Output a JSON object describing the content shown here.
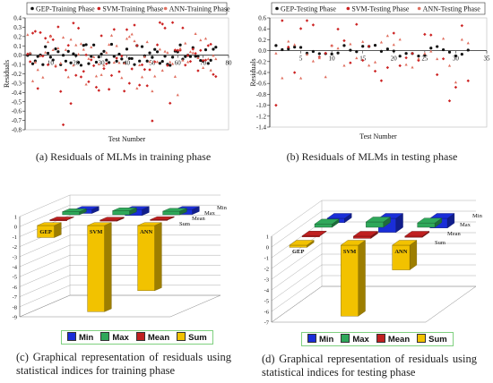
{
  "colors": {
    "gep": "#111111",
    "svm": "#cc2222",
    "ann": "#e07060",
    "min": "#1a2ed8",
    "max": "#2fa85a",
    "mean": "#c02020",
    "sum": "#f2c200"
  },
  "chart_data": [
    {
      "type": "scatter",
      "caption": "(a) Residuals of MLMs in training phase",
      "xlabel": "Test Number",
      "ylabel": "Residuals",
      "xlim": [
        0,
        80
      ],
      "ylim": [
        -0.8,
        0.4
      ],
      "xticks": [
        "10",
        "20",
        "30",
        "40",
        "50",
        "60",
        "70",
        "80"
      ],
      "yticks": [
        "0.4",
        "0.3",
        "0.2",
        "0.1",
        "0.0",
        "-0.1",
        "-0.2",
        "-0.3",
        "-0.4",
        "-0.5",
        "-0.6",
        "-0.7",
        "-0.8"
      ],
      "legend_position": "top",
      "series": [
        {
          "name": "GEP-Training Phase",
          "marker": "circle",
          "n": 75,
          "amp": 0.12
        },
        {
          "name": "SVM-Training Phase",
          "marker": "diamond",
          "n": 75,
          "amp": 0.4
        },
        {
          "name": "ANN-Training Phase",
          "marker": "triangle",
          "n": 75,
          "amp": 0.25
        }
      ]
    },
    {
      "type": "scatter",
      "caption": "(b) Residuals of MLMs in testing phase",
      "xlabel": "Test Number",
      "ylabel": "Residuals",
      "xlim": [
        0,
        35
      ],
      "ylim": [
        -1.4,
        0.6
      ],
      "xticks": [
        "5",
        "10",
        "15",
        "20",
        "25",
        "30",
        "35"
      ],
      "yticks": [
        "0.6",
        "0.4",
        "0.2",
        "0.0",
        "-0.2",
        "-0.4",
        "-0.6",
        "-0.8",
        "-1.0",
        "-1.2",
        "-1.4"
      ],
      "legend_position": "top",
      "series": [
        {
          "name": "GEP-Testing Phase",
          "marker": "circle",
          "n": 32,
          "amp": 0.1
        },
        {
          "name": "SVM-Testing Phase",
          "marker": "diamond",
          "n": 32,
          "amp": 0.6
        },
        {
          "name": "ANN-Testing Phase",
          "marker": "triangle",
          "n": 32,
          "amp": 0.3
        }
      ]
    },
    {
      "type": "bar",
      "caption": "(c) Graphical representation of residuals using statistical indices for training phase",
      "categories": [
        "GEP",
        "SVM",
        "ANN"
      ],
      "series": [
        {
          "name": "Min",
          "values": [
            -0.4,
            -0.6,
            -0.5
          ]
        },
        {
          "name": "Max",
          "values": [
            0.3,
            0.4,
            0.35
          ]
        },
        {
          "name": "Mean",
          "values": [
            0.02,
            -0.1,
            0.05
          ]
        },
        {
          "name": "Sum",
          "values": [
            -1.2,
            -8.6,
            -6.5
          ]
        }
      ],
      "ylim": [
        -9,
        1
      ],
      "yticks": [
        "1",
        "0",
        "-1",
        "-2",
        "-3",
        "-4",
        "-5",
        "-6",
        "-7",
        "-8",
        "-9"
      ],
      "depth_labels": [
        "Min",
        "Max",
        "Mean",
        "Sum"
      ]
    },
    {
      "type": "bar",
      "caption": "(d) Graphical representation of residuals using statistical indices for testing phase",
      "categories": [
        "GEP",
        "SVM",
        "ANN"
      ],
      "series": [
        {
          "name": "Min",
          "values": [
            -0.4,
            -1.3,
            -0.9
          ]
        },
        {
          "name": "Max",
          "values": [
            0.3,
            0.5,
            0.4
          ]
        },
        {
          "name": "Mean",
          "values": [
            0.02,
            -0.2,
            -0.1
          ]
        },
        {
          "name": "Sum",
          "values": [
            -0.2,
            -6.6,
            -2.3
          ]
        }
      ],
      "ylim": [
        -7,
        1
      ],
      "yticks": [
        "1",
        "0",
        "-1",
        "-2",
        "-3",
        "-4",
        "-5",
        "-6",
        "-7"
      ],
      "depth_labels": [
        "Min",
        "Max",
        "Mean",
        "Sum"
      ]
    }
  ]
}
